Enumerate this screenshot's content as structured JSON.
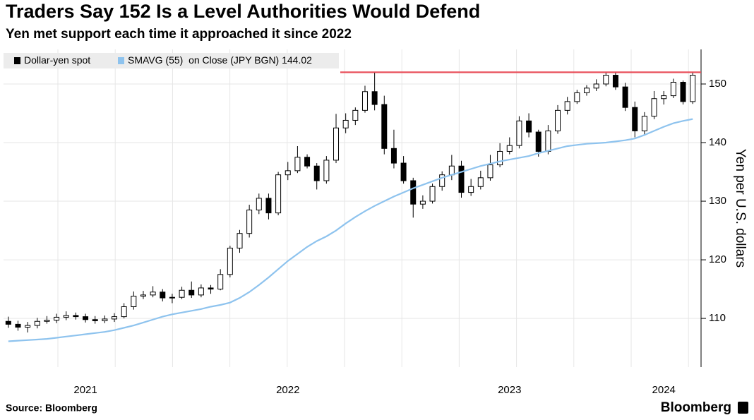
{
  "chart_data": {
    "type": "candlestick",
    "title": "Traders Say 152 Is a Level Authorities Would Defend",
    "subtitle": "Yen met support each time it approached it since 2022",
    "y_label": "Yen per U.S. dollars",
    "source": "Source: Bloomberg",
    "brand": "Bloomberg",
    "categories": [
      null,
      null,
      null,
      null,
      null,
      null,
      null,
      null,
      "2021",
      null,
      null,
      null,
      null,
      null,
      null,
      null,
      null,
      null,
      null,
      null,
      null,
      null,
      null,
      null,
      null,
      null,
      null,
      null,
      null,
      "2022",
      null,
      null,
      null,
      null,
      null,
      null,
      null,
      null,
      null,
      null,
      null,
      null,
      null,
      null,
      null,
      null,
      null,
      null,
      null,
      null,
      null,
      null,
      "2023",
      null,
      null,
      null,
      null,
      null,
      null,
      null,
      null,
      null,
      null,
      null,
      null,
      null,
      null,
      null,
      "2024",
      null,
      null,
      null
    ],
    "series": [
      {
        "name": "Dollar-yen spot",
        "color": "#000000",
        "open": [
          109.5,
          109.0,
          108.5,
          108.8,
          109.5,
          109.7,
          110.2,
          110.5,
          110.3,
          109.8,
          109.6,
          109.9,
          110.3,
          112.0,
          113.8,
          114.0,
          114.5,
          113.5,
          113.6,
          114.8,
          114.0,
          115.2,
          115.0,
          117.5,
          122.0,
          124.5,
          128.5,
          130.5,
          128.0,
          134.5,
          135.2,
          137.5,
          136.0,
          133.5,
          137.0,
          142.5,
          143.8,
          145.5,
          148.7,
          146.5,
          139.0,
          136.5,
          133.5,
          129.5,
          130.0,
          132.5,
          134.5,
          136.0,
          131.5,
          132.5,
          134.0,
          136.2,
          138.5,
          139.5,
          143.7,
          141.8,
          138.5,
          142.0,
          145.5,
          147.0,
          148.5,
          149.3,
          150.0,
          151.5,
          149.5,
          146.0,
          142.0,
          144.5,
          147.5,
          148.0,
          150.3,
          147.0
        ],
        "high": [
          110.3,
          109.6,
          109.4,
          110.1,
          110.4,
          110.8,
          111.2,
          111.0,
          110.8,
          110.4,
          110.5,
          110.9,
          112.6,
          114.6,
          114.7,
          115.5,
          115.0,
          114.2,
          115.4,
          116.3,
          115.8,
          115.7,
          118.4,
          122.4,
          125.1,
          129.4,
          131.3,
          131.3,
          135.0,
          136.7,
          139.4,
          138.0,
          136.5,
          137.7,
          144.9,
          145.0,
          146.0,
          149.7,
          151.9,
          148.0,
          142.2,
          137.7,
          134.0,
          131.0,
          133.0,
          135.1,
          137.9,
          136.9,
          133.8,
          135.2,
          137.9,
          139.9,
          140.9,
          144.5,
          145.0,
          142.2,
          143.0,
          146.4,
          147.8,
          149.0,
          149.8,
          150.8,
          151.9,
          151.9,
          150.2,
          147.0,
          145.2,
          148.8,
          148.8,
          150.9,
          150.6,
          151.9
        ],
        "low": [
          108.4,
          107.9,
          107.6,
          108.3,
          109.1,
          109.2,
          109.7,
          109.8,
          109.3,
          109.1,
          109.2,
          109.4,
          110.0,
          111.5,
          113.3,
          113.6,
          112.9,
          112.6,
          113.3,
          113.5,
          113.6,
          114.2,
          114.8,
          117.0,
          121.2,
          123.8,
          127.8,
          126.9,
          127.6,
          133.6,
          134.8,
          135.6,
          132.0,
          133.0,
          136.5,
          141.6,
          143.0,
          145.1,
          145.5,
          138.0,
          135.6,
          133.0,
          127.2,
          128.7,
          129.6,
          131.8,
          133.6,
          130.6,
          130.9,
          132.0,
          133.5,
          135.8,
          138.0,
          139.0,
          140.9,
          137.6,
          138.0,
          141.5,
          144.8,
          146.6,
          148.0,
          148.8,
          149.6,
          149.0,
          145.4,
          140.9,
          141.3,
          144.0,
          146.5,
          147.6,
          146.5,
          146.6
        ],
        "close": [
          109.0,
          108.5,
          108.8,
          109.5,
          109.7,
          110.2,
          110.5,
          110.3,
          109.8,
          109.6,
          109.9,
          110.3,
          112.0,
          113.8,
          114.0,
          114.5,
          113.5,
          113.6,
          114.8,
          114.0,
          115.2,
          115.0,
          117.5,
          122.0,
          124.5,
          128.5,
          130.5,
          128.0,
          134.5,
          135.2,
          137.5,
          136.0,
          133.5,
          137.0,
          142.5,
          143.8,
          145.5,
          148.7,
          146.5,
          139.0,
          136.5,
          133.5,
          129.5,
          130.0,
          132.5,
          134.5,
          136.0,
          131.5,
          132.5,
          134.0,
          136.2,
          138.5,
          139.5,
          143.7,
          141.8,
          138.5,
          142.0,
          145.5,
          147.0,
          148.5,
          149.3,
          150.0,
          151.5,
          149.5,
          146.0,
          142.0,
          144.5,
          147.5,
          148.0,
          150.3,
          147.0,
          151.5
        ]
      },
      {
        "name": "SMAVG (55)  on Close (JPY BGN) 144.02",
        "color": "#8ec3ee",
        "values": [
          106.1,
          106.2,
          106.3,
          106.4,
          106.5,
          106.7,
          106.9,
          107.1,
          107.3,
          107.5,
          107.7,
          108.0,
          108.4,
          108.8,
          109.3,
          109.8,
          110.3,
          110.7,
          111.0,
          111.3,
          111.6,
          112.0,
          112.3,
          112.7,
          113.5,
          114.5,
          115.7,
          117.0,
          118.4,
          119.8,
          121.0,
          122.2,
          123.2,
          124.0,
          125.0,
          126.2,
          127.3,
          128.3,
          129.2,
          130.0,
          130.8,
          131.5,
          132.2,
          132.8,
          133.4,
          134.0,
          134.5,
          135.0,
          135.5,
          136.0,
          136.4,
          136.8,
          137.1,
          137.4,
          137.7,
          138.2,
          138.6,
          139.0,
          139.4,
          139.6,
          139.8,
          139.9,
          140.0,
          140.2,
          140.4,
          140.7,
          141.3,
          142.0,
          142.7,
          143.3,
          143.7,
          144.02
        ]
      }
    ],
    "hline": {
      "value": 152,
      "color": "#e8505b"
    },
    "ylim": [
      101.7,
      155.9
    ],
    "yticks": [
      110,
      120,
      130,
      140,
      150
    ],
    "grid": true
  }
}
